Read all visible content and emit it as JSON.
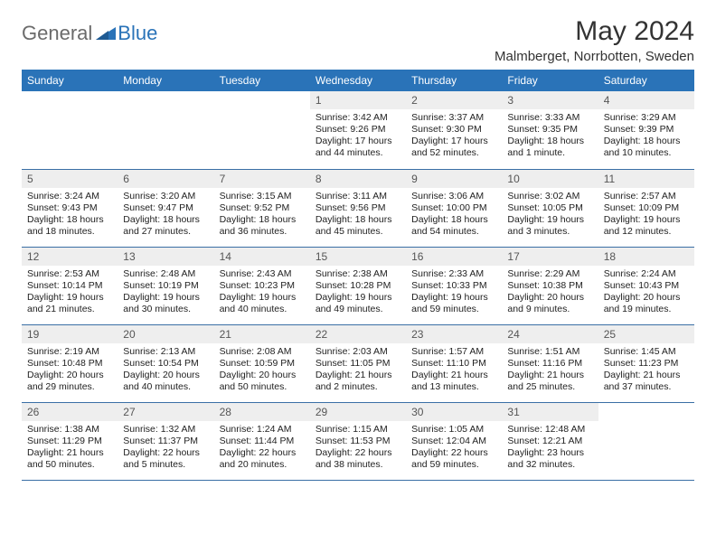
{
  "logo": {
    "general": "General",
    "blue": "Blue"
  },
  "title": "May 2024",
  "location": "Malmberget, Norrbotten, Sweden",
  "colors": {
    "header_bg": "#2a73b8",
    "header_text": "#ffffff",
    "daynum_bg": "#eeeeee",
    "row_border": "#3a6fa5",
    "logo_gray": "#6b6b6b",
    "logo_blue": "#2a73b8"
  },
  "weekdays": [
    "Sunday",
    "Monday",
    "Tuesday",
    "Wednesday",
    "Thursday",
    "Friday",
    "Saturday"
  ],
  "first_weekday_index": 3,
  "days": [
    {
      "n": 1,
      "sunrise": "3:42 AM",
      "sunset": "9:26 PM",
      "daylight": "17 hours and 44 minutes."
    },
    {
      "n": 2,
      "sunrise": "3:37 AM",
      "sunset": "9:30 PM",
      "daylight": "17 hours and 52 minutes."
    },
    {
      "n": 3,
      "sunrise": "3:33 AM",
      "sunset": "9:35 PM",
      "daylight": "18 hours and 1 minute."
    },
    {
      "n": 4,
      "sunrise": "3:29 AM",
      "sunset": "9:39 PM",
      "daylight": "18 hours and 10 minutes."
    },
    {
      "n": 5,
      "sunrise": "3:24 AM",
      "sunset": "9:43 PM",
      "daylight": "18 hours and 18 minutes."
    },
    {
      "n": 6,
      "sunrise": "3:20 AM",
      "sunset": "9:47 PM",
      "daylight": "18 hours and 27 minutes."
    },
    {
      "n": 7,
      "sunrise": "3:15 AM",
      "sunset": "9:52 PM",
      "daylight": "18 hours and 36 minutes."
    },
    {
      "n": 8,
      "sunrise": "3:11 AM",
      "sunset": "9:56 PM",
      "daylight": "18 hours and 45 minutes."
    },
    {
      "n": 9,
      "sunrise": "3:06 AM",
      "sunset": "10:00 PM",
      "daylight": "18 hours and 54 minutes."
    },
    {
      "n": 10,
      "sunrise": "3:02 AM",
      "sunset": "10:05 PM",
      "daylight": "19 hours and 3 minutes."
    },
    {
      "n": 11,
      "sunrise": "2:57 AM",
      "sunset": "10:09 PM",
      "daylight": "19 hours and 12 minutes."
    },
    {
      "n": 12,
      "sunrise": "2:53 AM",
      "sunset": "10:14 PM",
      "daylight": "19 hours and 21 minutes."
    },
    {
      "n": 13,
      "sunrise": "2:48 AM",
      "sunset": "10:19 PM",
      "daylight": "19 hours and 30 minutes."
    },
    {
      "n": 14,
      "sunrise": "2:43 AM",
      "sunset": "10:23 PM",
      "daylight": "19 hours and 40 minutes."
    },
    {
      "n": 15,
      "sunrise": "2:38 AM",
      "sunset": "10:28 PM",
      "daylight": "19 hours and 49 minutes."
    },
    {
      "n": 16,
      "sunrise": "2:33 AM",
      "sunset": "10:33 PM",
      "daylight": "19 hours and 59 minutes."
    },
    {
      "n": 17,
      "sunrise": "2:29 AM",
      "sunset": "10:38 PM",
      "daylight": "20 hours and 9 minutes."
    },
    {
      "n": 18,
      "sunrise": "2:24 AM",
      "sunset": "10:43 PM",
      "daylight": "20 hours and 19 minutes."
    },
    {
      "n": 19,
      "sunrise": "2:19 AM",
      "sunset": "10:48 PM",
      "daylight": "20 hours and 29 minutes."
    },
    {
      "n": 20,
      "sunrise": "2:13 AM",
      "sunset": "10:54 PM",
      "daylight": "20 hours and 40 minutes."
    },
    {
      "n": 21,
      "sunrise": "2:08 AM",
      "sunset": "10:59 PM",
      "daylight": "20 hours and 50 minutes."
    },
    {
      "n": 22,
      "sunrise": "2:03 AM",
      "sunset": "11:05 PM",
      "daylight": "21 hours and 2 minutes."
    },
    {
      "n": 23,
      "sunrise": "1:57 AM",
      "sunset": "11:10 PM",
      "daylight": "21 hours and 13 minutes."
    },
    {
      "n": 24,
      "sunrise": "1:51 AM",
      "sunset": "11:16 PM",
      "daylight": "21 hours and 25 minutes."
    },
    {
      "n": 25,
      "sunrise": "1:45 AM",
      "sunset": "11:23 PM",
      "daylight": "21 hours and 37 minutes."
    },
    {
      "n": 26,
      "sunrise": "1:38 AM",
      "sunset": "11:29 PM",
      "daylight": "21 hours and 50 minutes."
    },
    {
      "n": 27,
      "sunrise": "1:32 AM",
      "sunset": "11:37 PM",
      "daylight": "22 hours and 5 minutes."
    },
    {
      "n": 28,
      "sunrise": "1:24 AM",
      "sunset": "11:44 PM",
      "daylight": "22 hours and 20 minutes."
    },
    {
      "n": 29,
      "sunrise": "1:15 AM",
      "sunset": "11:53 PM",
      "daylight": "22 hours and 38 minutes."
    },
    {
      "n": 30,
      "sunrise": "1:05 AM",
      "sunset": "12:04 AM",
      "daylight": "22 hours and 59 minutes."
    },
    {
      "n": 31,
      "sunrise": "12:48 AM",
      "sunset": "12:21 AM",
      "daylight": "23 hours and 32 minutes."
    }
  ],
  "labels": {
    "sunrise": "Sunrise:",
    "sunset": "Sunset:",
    "daylight": "Daylight:"
  }
}
